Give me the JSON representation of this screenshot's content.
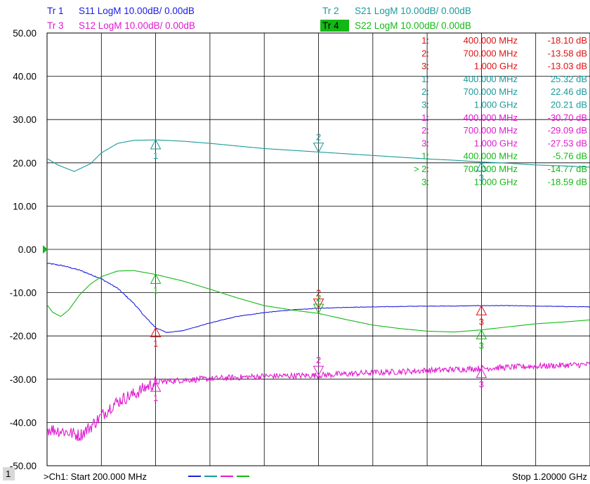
{
  "header": {
    "traces": [
      {
        "id": "Tr  1",
        "param": "S11 LogM 10.00dB/  0.00dB",
        "color": "#1a1ae6",
        "active": false
      },
      {
        "id": "Tr  2",
        "param": "S21 LogM 10.00dB/  0.00dB",
        "color": "#1a9a9a",
        "active": false
      },
      {
        "id": "Tr  3",
        "param": "S12 LogM 10.00dB/  0.00dB",
        "color": "#e01ad0",
        "active": false
      },
      {
        "id": "Tr  4",
        "param": "S22 LogM 10.00dB/  0.00dB",
        "color": "#14b814",
        "active": true
      }
    ]
  },
  "footer": {
    "channel_number": "1",
    "start_text": ">Ch1:  Start  200.000 MHz",
    "stop_text": "Stop  1.20000 GHz"
  },
  "marker_table": [
    {
      "trace": 1,
      "color": "#e01010",
      "rows": [
        {
          "idx": "1:",
          "freq": "400.000 MHz",
          "val": "-18.10 dB"
        },
        {
          "idx": "2:",
          "freq": "700.000 MHz",
          "val": "-13.58 dB"
        },
        {
          "idx": "3:",
          "freq": "1.000 GHz",
          "val": "-13.03 dB"
        }
      ]
    },
    {
      "trace": 2,
      "color": "#1a9a9a",
      "rows": [
        {
          "idx": "1:",
          "freq": "400.000 MHz",
          "val": "25.32 dB"
        },
        {
          "idx": "2:",
          "freq": "700.000 MHz",
          "val": "22.46 dB"
        },
        {
          "idx": "3:",
          "freq": "1.000 GHz",
          "val": "20.21 dB"
        }
      ]
    },
    {
      "trace": 3,
      "color": "#e01ad0",
      "rows": [
        {
          "idx": "1:",
          "freq": "400.000 MHz",
          "val": "-30.70 dB"
        },
        {
          "idx": "2:",
          "freq": "700.000 MHz",
          "val": "-29.09 dB"
        },
        {
          "idx": "3:",
          "freq": "1.000 GHz",
          "val": "-27.53 dB"
        }
      ]
    },
    {
      "trace": 4,
      "color": "#14b814",
      "rows": [
        {
          "idx": "1:",
          "freq": "400.000 MHz",
          "val": "-5.76 dB"
        },
        {
          "idx": "> 2:",
          "freq": "700.000 MHz",
          "val": "-14.77 dB"
        },
        {
          "idx": "3:",
          "freq": "1.000 GHz",
          "val": "-18.59 dB"
        }
      ]
    }
  ],
  "chart_data": {
    "type": "line",
    "xlim": [
      200,
      1200
    ],
    "x_unit": "MHz",
    "ylim": [
      -50,
      50
    ],
    "y_ticks": [
      50,
      40,
      30,
      20,
      10,
      0,
      -10,
      -20,
      -30,
      -40,
      -50
    ],
    "y_tick_labels": [
      "50.00",
      "40.00",
      "30.00",
      "20.00",
      "10.00",
      "0.00",
      "-10.00",
      "-20.00",
      "-30.00",
      "-40.00",
      "-50.00"
    ],
    "reference_level": 0,
    "x_divisions": 10,
    "grid": true,
    "series": [
      {
        "name": "S11",
        "color": "#2222dd",
        "noise": 0.06,
        "x": [
          200,
          230,
          260,
          300,
          330,
          360,
          380,
          400,
          420,
          450,
          500,
          550,
          600,
          650,
          700,
          750,
          800,
          850,
          900,
          950,
          1000,
          1050,
          1100,
          1150,
          1200
        ],
        "y": [
          -3.2,
          -3.8,
          -4.8,
          -6.8,
          -9.0,
          -12.5,
          -15.5,
          -18.1,
          -19.2,
          -18.8,
          -17.0,
          -15.5,
          -14.6,
          -14.0,
          -13.6,
          -13.4,
          -13.3,
          -13.2,
          -13.1,
          -13.1,
          -13.0,
          -13.0,
          -13.1,
          -13.2,
          -13.3
        ]
      },
      {
        "name": "S21",
        "color": "#1a9a9a",
        "noise": 0.0,
        "x": [
          200,
          220,
          250,
          280,
          300,
          330,
          360,
          400,
          450,
          500,
          550,
          600,
          650,
          700,
          750,
          800,
          850,
          900,
          950,
          1000,
          1050,
          1100,
          1150,
          1200
        ],
        "y": [
          21.0,
          19.5,
          18.0,
          19.8,
          22.3,
          24.5,
          25.2,
          25.3,
          25.0,
          24.5,
          23.9,
          23.3,
          22.9,
          22.5,
          22.1,
          21.7,
          21.3,
          20.9,
          20.6,
          20.2,
          19.9,
          19.5,
          19.3,
          19.0
        ]
      },
      {
        "name": "S12",
        "color": "#e01ad0",
        "noise": 0.7,
        "x": [
          200,
          230,
          260,
          280,
          300,
          320,
          340,
          360,
          380,
          400,
          450,
          500,
          550,
          600,
          700,
          800,
          900,
          1000,
          1100,
          1200
        ],
        "y": [
          -41.5,
          -42.0,
          -43.0,
          -41.0,
          -38.5,
          -36.0,
          -34.5,
          -33.5,
          -32.0,
          -30.7,
          -30.2,
          -29.9,
          -29.6,
          -29.3,
          -29.1,
          -28.5,
          -28.0,
          -27.5,
          -27.0,
          -26.6
        ]
      },
      {
        "name": "S22",
        "color": "#14b814",
        "noise": 0.0,
        "x": [
          200,
          210,
          225,
          240,
          260,
          280,
          300,
          330,
          360,
          400,
          450,
          500,
          550,
          600,
          650,
          700,
          750,
          800,
          850,
          900,
          950,
          1000,
          1050,
          1100,
          1150,
          1200
        ],
        "y": [
          -12.8,
          -14.5,
          -15.5,
          -14.0,
          -10.5,
          -8.0,
          -6.3,
          -5.0,
          -4.9,
          -5.8,
          -7.3,
          -9.2,
          -11.2,
          -13.0,
          -14.0,
          -14.8,
          -16.2,
          -17.5,
          -18.3,
          -18.9,
          -19.1,
          -18.6,
          -17.9,
          -17.2,
          -16.8,
          -16.3
        ]
      }
    ],
    "markers": [
      {
        "series": "S11",
        "label": "1",
        "x": 400,
        "y": -18.1,
        "color": "#e01010",
        "up": true
      },
      {
        "series": "S11",
        "label": "2",
        "x": 700,
        "y": -13.58,
        "color": "#e01010",
        "up": false
      },
      {
        "series": "S11",
        "label": "3",
        "x": 1000,
        "y": -13.03,
        "color": "#e01010",
        "up": true
      },
      {
        "series": "S21",
        "label": "1",
        "x": 400,
        "y": 25.32,
        "color": "#1a9a9a",
        "up": true
      },
      {
        "series": "S21",
        "label": "2",
        "x": 700,
        "y": 22.46,
        "color": "#1a9a9a",
        "up": false
      },
      {
        "series": "S21",
        "label": "3",
        "x": 1000,
        "y": 20.21,
        "color": "#1a9a9a",
        "up": true
      },
      {
        "series": "S12",
        "label": "1",
        "x": 400,
        "y": -30.7,
        "color": "#e01ad0",
        "up": true
      },
      {
        "series": "S12",
        "label": "2",
        "x": 700,
        "y": -29.09,
        "color": "#e01ad0",
        "up": false
      },
      {
        "series": "S12",
        "label": "3",
        "x": 1000,
        "y": -27.53,
        "color": "#e01ad0",
        "up": true
      },
      {
        "series": "S22",
        "label": "1",
        "x": 400,
        "y": -5.76,
        "color": "#14b814",
        "up": true
      },
      {
        "series": "S22",
        "label": "2",
        "x": 700,
        "y": -14.77,
        "color": "#14b814",
        "up": false
      },
      {
        "series": "S22",
        "label": "3",
        "x": 1000,
        "y": -18.59,
        "color": "#14b814",
        "up": true
      }
    ]
  }
}
